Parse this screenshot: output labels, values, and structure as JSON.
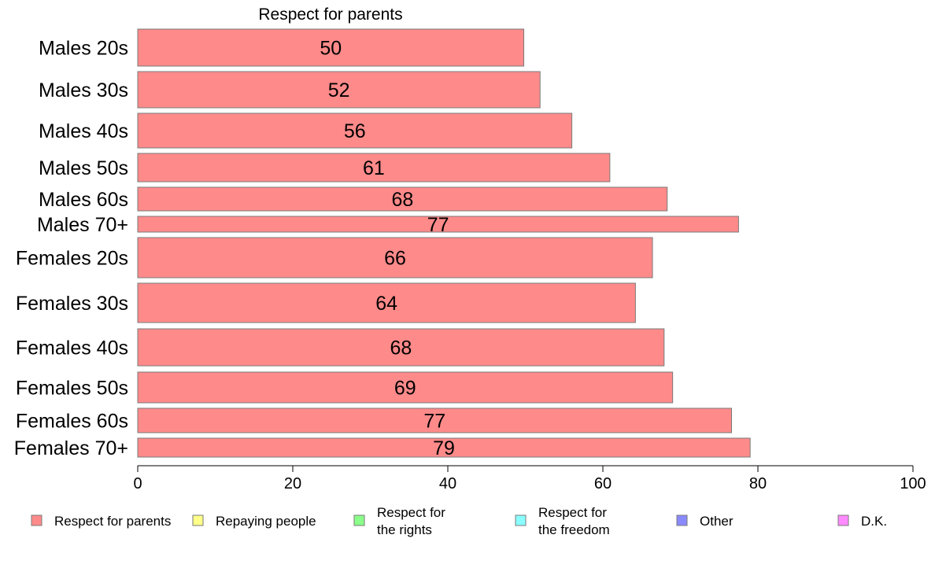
{
  "chart_data": {
    "type": "bar",
    "orientation": "horizontal",
    "title": "Respect for parents",
    "categories": [
      "Males 20s",
      "Males 30s",
      "Males 40s",
      "Males 50s",
      "Males 60s",
      "Males 70+",
      "Females 20s",
      "Females 30s",
      "Females 40s",
      "Females 50s",
      "Females 60s",
      "Females 70+"
    ],
    "series": [
      {
        "name": "Respect for parents",
        "color": "#ff8a8a",
        "values": [
          49.8,
          51.9,
          56.0,
          60.9,
          68.3,
          77.5,
          66.4,
          64.2,
          67.9,
          69.0,
          76.6,
          79.0
        ],
        "labels": [
          "50",
          "52",
          "56",
          "61",
          "68",
          "77",
          "66",
          "64",
          "68",
          "69",
          "77",
          "79"
        ]
      }
    ],
    "xlim": [
      0,
      100
    ],
    "xticks": [
      "0",
      "20",
      "40",
      "60",
      "80",
      "100"
    ],
    "grid": false,
    "legend": {
      "placement": "bottom",
      "items": [
        {
          "lines": [
            "Respect for parents"
          ],
          "color": "#ff8a8a"
        },
        {
          "lines": [
            "Repaying people"
          ],
          "color": "#ffff8a"
        },
        {
          "lines": [
            "Respect for",
            "the rights"
          ],
          "color": "#8aff8a"
        },
        {
          "lines": [
            "Respect for",
            "the freedom"
          ],
          "color": "#8affff"
        },
        {
          "lines": [
            "Other"
          ],
          "color": "#8a8aff"
        },
        {
          "lines": [
            "D.K."
          ],
          "color": "#ff8aff"
        }
      ]
    }
  }
}
